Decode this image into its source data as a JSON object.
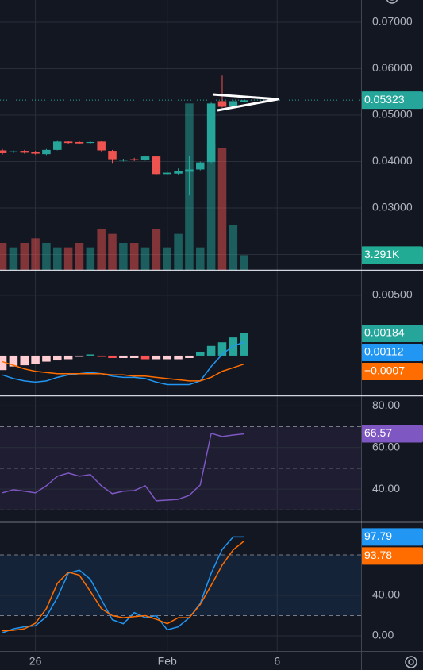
{
  "chart_data": [
    {
      "type": "candlestick",
      "x": [
        0,
        1,
        2,
        3,
        4,
        5,
        6,
        7,
        8,
        9,
        10,
        11,
        12,
        13,
        14,
        15,
        16,
        17,
        18,
        19,
        20,
        21,
        22
      ],
      "xlim": [
        -0.22,
        32.64
      ],
      "xticks": [
        {
          "value": 3,
          "label": "26"
        },
        {
          "value": 15,
          "label": "Feb"
        },
        {
          "value": 25,
          "label": "6"
        }
      ],
      "open": [
        0.0424,
        0.042,
        0.0423,
        0.0421,
        0.0416,
        0.0425,
        0.0443,
        0.0442,
        0.044,
        0.0443,
        0.0423,
        0.0402,
        0.0405,
        0.0404,
        0.0411,
        0.0373,
        0.0374,
        0.0378,
        0.0383,
        0.0399,
        0.053,
        0.052,
        0.0528
      ],
      "high": [
        0.0427,
        0.0424,
        0.0425,
        0.0423,
        0.0427,
        0.0446,
        0.0445,
        0.0444,
        0.0444,
        0.0445,
        0.0425,
        0.0406,
        0.0408,
        0.0413,
        0.0413,
        0.0378,
        0.0385,
        0.0412,
        0.04,
        0.0527,
        0.0585,
        0.0532,
        0.0534
      ],
      "low": [
        0.0415,
        0.0418,
        0.0417,
        0.0415,
        0.0414,
        0.0424,
        0.0438,
        0.0437,
        0.0438,
        0.0422,
        0.0397,
        0.04,
        0.0401,
        0.0402,
        0.0371,
        0.0371,
        0.0372,
        0.0327,
        0.0381,
        0.0397,
        0.0516,
        0.0518,
        0.0526
      ],
      "close": [
        0.0418,
        0.0422,
        0.0419,
        0.0417,
        0.0425,
        0.0443,
        0.044,
        0.0439,
        0.0442,
        0.0424,
        0.0405,
        0.0404,
        0.0403,
        0.0411,
        0.0373,
        0.0376,
        0.038,
        0.0383,
        0.0398,
        0.0525,
        0.0518,
        0.053,
        0.0532
      ],
      "up_color": "#26a69a",
      "down_color": "#ef5350",
      "ylim": [
        0.01667,
        0.07479
      ],
      "yticks": [
        {
          "value": 0.07,
          "label": "0.07000"
        },
        {
          "value": 0.06,
          "label": "0.06000"
        },
        {
          "value": 0.05,
          "label": "0.05000"
        },
        {
          "value": 0.04,
          "label": "0.04000"
        },
        {
          "value": 0.03,
          "label": "0.03000"
        },
        {
          "value": 0.02,
          "label": "0.02000"
        }
      ],
      "grid": true,
      "last_price": 0.05323,
      "last_price_label": "0.05323",
      "volume": {
        "values": [
          6,
          5,
          6,
          7,
          6,
          5,
          5,
          6,
          5,
          9,
          8,
          6,
          6,
          5,
          9,
          5,
          8,
          37,
          5,
          28,
          27,
          10,
          3.291
        ],
        "vlim": [
          0,
          60
        ],
        "last_label": "3.291K",
        "label_color": "#22ab94"
      }
    },
    {
      "type": "macd",
      "ylim": [
        -0.00329,
        0.00703
      ],
      "yticks": [
        {
          "value": 0.005,
          "label": "0.00500"
        }
      ],
      "histogram": {
        "values": [
          -0.0012,
          -0.0009,
          -0.0008,
          -0.0007,
          -0.0005,
          -0.0004,
          -0.0003,
          -0.0001,
          0.0001,
          -0.0001,
          -0.0002,
          -0.0002,
          -0.0002,
          -0.0003,
          -0.0003,
          -0.0003,
          -0.0003,
          -0.0002,
          0.0003,
          0.0008,
          0.0011,
          0.0015,
          0.00184
        ],
        "colors": [
          "#26a69a",
          "#b2dfdb",
          "#ffcdd2",
          "#ff5252"
        ],
        "last_label": "0.00184"
      },
      "series": [
        {
          "color": "#2196f3",
          "values": [
            -0.0016,
            -0.0019,
            -0.0021,
            -0.0022,
            -0.0021,
            -0.0018,
            -0.0016,
            -0.0015,
            -0.0014,
            -0.0015,
            -0.0017,
            -0.0018,
            -0.0018,
            -0.0019,
            -0.0022,
            -0.0024,
            -0.0024,
            -0.0024,
            -0.0021,
            -0.0009,
            0.0001,
            0.0008,
            0.00112
          ],
          "last_label": "0.00112"
        },
        {
          "color": "#ff6d00",
          "values": [
            -0.0005,
            -0.0008,
            -0.0011,
            -0.0013,
            -0.0014,
            -0.0015,
            -0.0015,
            -0.0015,
            -0.0015,
            -0.0015,
            -0.0016,
            -0.0016,
            -0.0017,
            -0.0017,
            -0.0018,
            -0.0019,
            -0.002,
            -0.0021,
            -0.0021,
            -0.0018,
            -0.0013,
            -0.001,
            -0.0007
          ],
          "last_label": "−0.0007"
        }
      ]
    },
    {
      "type": "line",
      "ylim": [
        24.4,
        84.7
      ],
      "yticks": [
        {
          "value": 80,
          "label": "80.00"
        },
        {
          "value": 60,
          "label": "60.00"
        },
        {
          "value": 40,
          "label": "40.00"
        }
      ],
      "levels": [
        30,
        50,
        70
      ],
      "band": [
        30,
        70
      ],
      "band_color": "rgba(126,87,194,0.1)",
      "series": [
        {
          "color": "#7e57c2",
          "values": [
            38.2,
            39.7,
            39,
            38.2,
            41.6,
            46.2,
            47.7,
            46.2,
            47,
            41.6,
            37.8,
            39,
            39.3,
            41.6,
            34.4,
            34.7,
            35.1,
            37,
            42,
            66.8,
            65.3,
            66,
            66.57
          ],
          "last_label": "66.57"
        }
      ]
    },
    {
      "type": "line",
      "ylim": [
        -14.9,
        112.2
      ],
      "yticks": [
        {
          "value": 40,
          "label": "40.00"
        },
        {
          "value": 0,
          "label": "0.00"
        }
      ],
      "levels": [
        20,
        80
      ],
      "band": [
        20,
        80
      ],
      "band_color": "rgba(33,150,243,0.1)",
      "series": [
        {
          "color": "#2196f3",
          "values": [
            3,
            7,
            9,
            10,
            19,
            38,
            62,
            65,
            56,
            36,
            16,
            12,
            23,
            18,
            20,
            6,
            9,
            18,
            32,
            62,
            85.5,
            97.79,
            97.79
          ],
          "last_label": "97.79"
        },
        {
          "color": "#ff6d00",
          "values": [
            5,
            5.5,
            7,
            12.5,
            27,
            52,
            63,
            60,
            44,
            27,
            20,
            18,
            19,
            20,
            16.5,
            12,
            18,
            18,
            31,
            50,
            70,
            85,
            93.78
          ],
          "last_label": "93.78"
        }
      ]
    }
  ]
}
